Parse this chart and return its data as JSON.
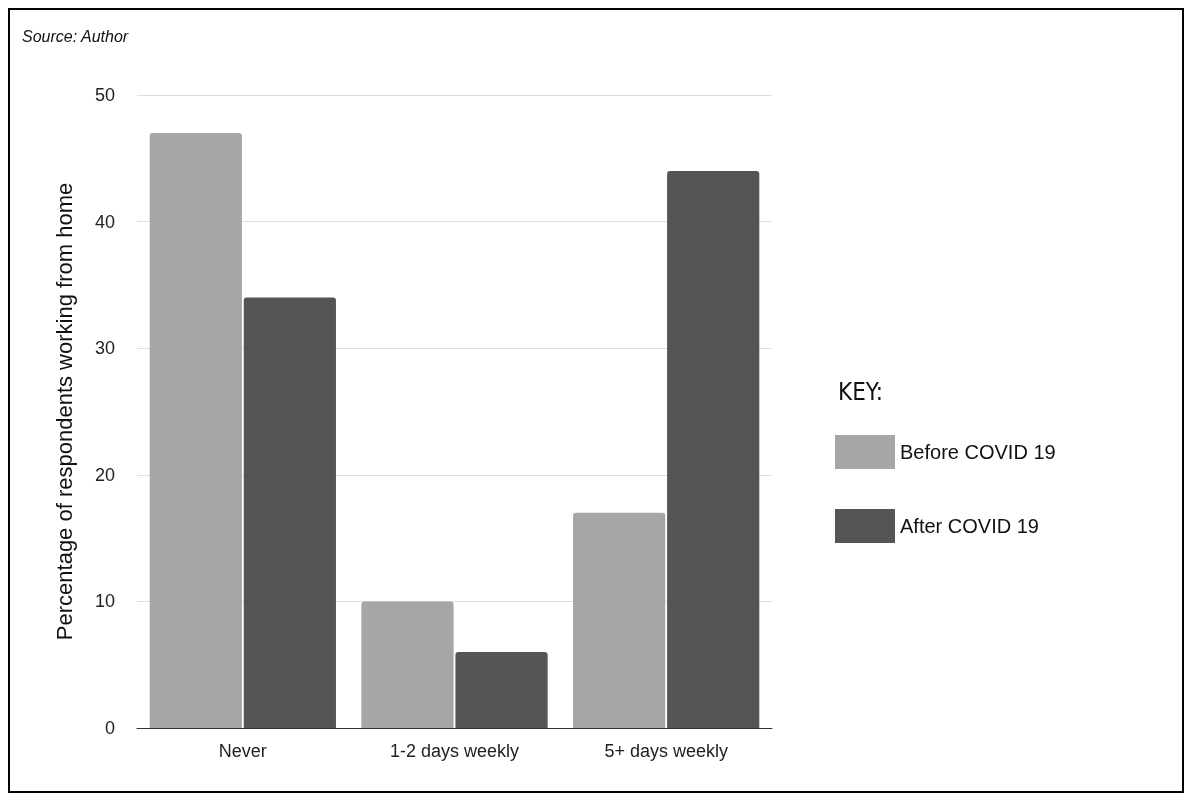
{
  "chart_data": {
    "type": "bar",
    "ylabel": "Percentage of respondents working from home",
    "legend_title": "KEY:",
    "annotations": [
      "Source: Author"
    ],
    "categories": [
      "Never",
      "1-2 days weekly",
      "5+ days weekly"
    ],
    "series": [
      {
        "name": "Before COVID 19",
        "color": "#a6a6a6",
        "values": [
          47,
          10,
          17
        ]
      },
      {
        "name": "After COVID 19",
        "color": "#555555",
        "values": [
          34,
          6,
          44
        ]
      }
    ],
    "ylim": [
      0,
      50
    ],
    "yticks": [
      0,
      10,
      20,
      30,
      40,
      50
    ],
    "grid": "y",
    "legend": "right"
  }
}
